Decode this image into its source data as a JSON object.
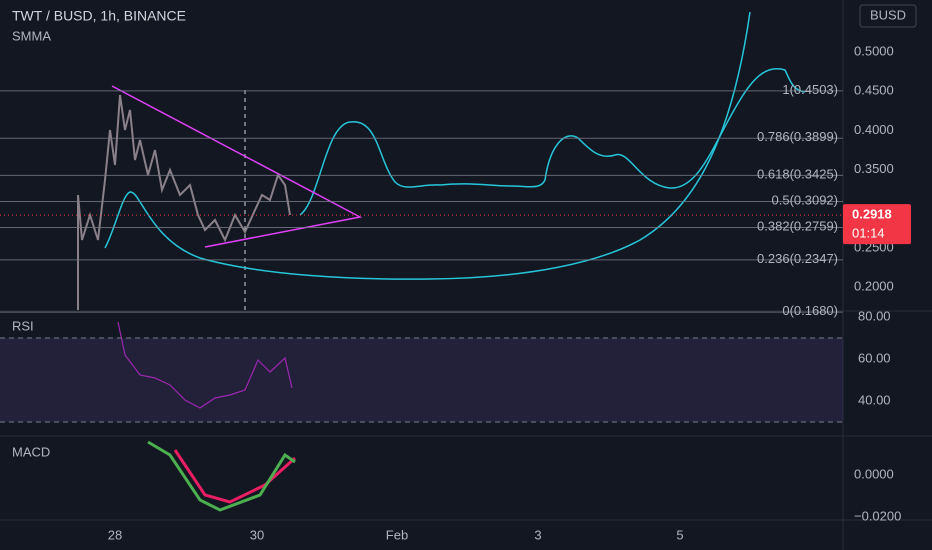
{
  "header": {
    "symbol": "TWT / BUSD, 1h, BINANCE",
    "indicator": "SMMA",
    "currency": "BUSD"
  },
  "price_axis": {
    "ticks": [
      0.5,
      0.45,
      0.4,
      0.35,
      0.25,
      0.2
    ],
    "labels": [
      "0.5000",
      "0.4500",
      "0.4000",
      "0.3500",
      "0.2500",
      "0.2000"
    ]
  },
  "fib_levels": [
    {
      "label": "1(0.4503)",
      "price": 0.4503
    },
    {
      "label": "0.786(0.3899)",
      "price": 0.3899
    },
    {
      "label": "0.618(0.3425)",
      "price": 0.3425
    },
    {
      "label": "0.5(0.3092)",
      "price": 0.3092
    },
    {
      "label": "0.382(0.2759)",
      "price": 0.2759
    },
    {
      "label": "0.236(0.2347)",
      "price": 0.2347
    },
    {
      "label": "0(0.1680)",
      "price": 0.168
    }
  ],
  "last_price": 0.2918,
  "countdown": "01:14",
  "rsi": {
    "title": "RSI",
    "ticks": [
      80,
      60,
      40
    ],
    "labels": [
      "80.00",
      "60.00",
      "40.00"
    ],
    "bands": [
      70,
      30
    ]
  },
  "macd": {
    "title": "MACD",
    "ticks": [
      0,
      -0.02
    ],
    "labels": [
      "0.0000",
      "−0.0200"
    ]
  },
  "time_axis": [
    "28",
    "30",
    "Feb",
    "3",
    "5"
  ]
}
